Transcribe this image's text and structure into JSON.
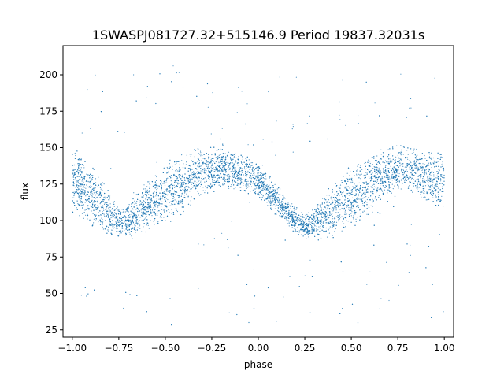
{
  "chart_data": {
    "type": "scatter",
    "title": "1SWASPJ081727.32+515146.9 Period 19837.32031s",
    "xlabel": "phase",
    "ylabel": "flux",
    "xlim": [
      -1.05,
      1.05
    ],
    "ylim": [
      20,
      220
    ],
    "xticks": [
      -1.0,
      -0.75,
      -0.5,
      -0.25,
      0.0,
      0.25,
      0.5,
      0.75,
      1.0
    ],
    "xtick_labels": [
      "−1.00",
      "−0.75",
      "−0.50",
      "−0.25",
      "0.00",
      "0.25",
      "0.50",
      "0.75",
      "1.00"
    ],
    "yticks": [
      25,
      50,
      75,
      100,
      125,
      150,
      175,
      200
    ],
    "ytick_labels": [
      "25",
      "50",
      "75",
      "100",
      "125",
      "150",
      "175",
      "200"
    ],
    "grid": false,
    "legend": "none",
    "series": [
      {
        "color": "#1f77b4",
        "marker_size": "tiny",
        "x_range": [
          -1.0,
          1.0
        ],
        "envelope_phase": [
          -1.0,
          -0.9,
          -0.8,
          -0.75,
          -0.7,
          -0.6,
          -0.5,
          -0.4,
          -0.3,
          -0.25,
          -0.2,
          -0.1,
          0.0,
          0.1,
          0.2,
          0.25,
          0.3,
          0.4,
          0.5,
          0.6,
          0.7,
          0.75,
          0.8,
          0.9,
          1.0
        ],
        "envelope_upper": [
          152,
          140,
          120,
          110,
          112,
          128,
          140,
          148,
          153,
          153,
          152,
          148,
          140,
          125,
          110,
          105,
          110,
          128,
          138,
          148,
          152,
          153,
          152,
          150,
          148
        ],
        "envelope_lower": [
          108,
          95,
          88,
          87,
          88,
          90,
          95,
          105,
          115,
          118,
          120,
          118,
          115,
          102,
          90,
          87,
          86,
          87,
          92,
          102,
          115,
          120,
          120,
          112,
          105
        ],
        "scatter_outliers_range": [
          28,
          212
        ]
      }
    ]
  }
}
